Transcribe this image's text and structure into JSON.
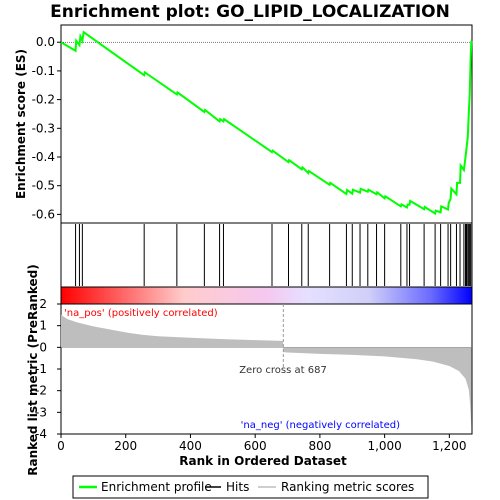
{
  "chart_data": {
    "type": "line",
    "title": "Enrichment plot: GO_LIPID_LOCALIZATION",
    "es_panel": {
      "ylabel": "Enrichment score (ES)",
      "ylim": [
        -0.63,
        0.06
      ],
      "yticks": [
        0.0,
        -0.1,
        -0.2,
        -0.3,
        -0.4,
        -0.5,
        -0.6
      ],
      "ytick_labels": [
        "0.0",
        "-0.1",
        "-0.2",
        "-0.3",
        "-0.4",
        "-0.5",
        "-0.6"
      ],
      "series": [
        {
          "name": "Enrichment profile",
          "color": "#00ff00",
          "points": [
            [
              0,
              0.0
            ],
            [
              45,
              -0.03
            ],
            [
              47,
              0.005
            ],
            [
              57,
              -0.01
            ],
            [
              60,
              0.02
            ],
            [
              66,
              0.005
            ],
            [
              70,
              0.035
            ],
            [
              257,
              -0.115
            ],
            [
              259,
              -0.105
            ],
            [
              358,
              -0.182
            ],
            [
              360,
              -0.175
            ],
            [
              443,
              -0.243
            ],
            [
              445,
              -0.236
            ],
            [
              490,
              -0.276
            ],
            [
              492,
              -0.268
            ],
            [
              502,
              -0.276
            ],
            [
              504,
              -0.268
            ],
            [
              652,
              -0.383
            ],
            [
              654,
              -0.378
            ],
            [
              703,
              -0.418
            ],
            [
              705,
              -0.411
            ],
            [
              744,
              -0.443
            ],
            [
              746,
              -0.436
            ],
            [
              764,
              -0.456
            ],
            [
              766,
              -0.449
            ],
            [
              830,
              -0.497
            ],
            [
              832,
              -0.49
            ],
            [
              882,
              -0.529
            ],
            [
              884,
              -0.515
            ],
            [
              900,
              -0.528
            ],
            [
              902,
              -0.514
            ],
            [
              924,
              -0.524
            ],
            [
              926,
              -0.511
            ],
            [
              948,
              -0.521
            ],
            [
              950,
              -0.514
            ],
            [
              975,
              -0.53
            ],
            [
              977,
              -0.523
            ],
            [
              1000,
              -0.544
            ],
            [
              1002,
              -0.537
            ],
            [
              1050,
              -0.572
            ],
            [
              1052,
              -0.565
            ],
            [
              1069,
              -0.576
            ],
            [
              1071,
              -0.566
            ],
            [
              1077,
              -0.566
            ],
            [
              1079,
              -0.553
            ],
            [
              1122,
              -0.582
            ],
            [
              1124,
              -0.574
            ],
            [
              1156,
              -0.597
            ],
            [
              1158,
              -0.587
            ],
            [
              1173,
              -0.593
            ],
            [
              1175,
              -0.572
            ],
            [
              1196,
              -0.583
            ],
            [
              1198,
              -0.56
            ],
            [
              1204,
              -0.545
            ],
            [
              1206,
              -0.51
            ],
            [
              1222,
              -0.53
            ],
            [
              1224,
              -0.49
            ],
            [
              1233,
              -0.49
            ],
            [
              1235,
              -0.43
            ],
            [
              1245,
              -0.445
            ],
            [
              1250,
              -0.4
            ],
            [
              1253,
              -0.37
            ],
            [
              1257,
              -0.33
            ],
            [
              1260,
              -0.25
            ],
            [
              1263,
              -0.18
            ],
            [
              1266,
              -0.05
            ],
            [
              1268,
              0.005
            ]
          ]
        }
      ]
    },
    "hits_panel": {
      "hit_positions": [
        45,
        57,
        66,
        257,
        358,
        443,
        490,
        502,
        652,
        703,
        744,
        764,
        830,
        882,
        900,
        924,
        948,
        975,
        1000,
        1050,
        1069,
        1077,
        1122,
        1156,
        1173,
        1196,
        1204,
        1222,
        1233,
        1245,
        1250,
        1253,
        1257,
        1260,
        1263,
        1266
      ]
    },
    "metric_panel": {
      "ylabel": "Ranked list metric (PreRanked)",
      "ylim": [
        -4,
        2
      ],
      "yticks": [
        2,
        1,
        0,
        -1,
        -2,
        -3,
        -4
      ],
      "ytick_labels": [
        "2",
        "1",
        "0",
        "-1",
        "-2",
        "-3",
        "-4"
      ],
      "fill_color": "#bebebe",
      "profile": [
        [
          0,
          1.5
        ],
        [
          20,
          1.3
        ],
        [
          50,
          1.15
        ],
        [
          100,
          0.97
        ],
        [
          150,
          0.83
        ],
        [
          200,
          0.69
        ],
        [
          250,
          0.58
        ],
        [
          300,
          0.51
        ],
        [
          400,
          0.44
        ],
        [
          500,
          0.38
        ],
        [
          600,
          0.33
        ],
        [
          686,
          0.3
        ],
        [
          687,
          -0.22
        ],
        [
          700,
          -0.24
        ],
        [
          800,
          -0.3
        ],
        [
          900,
          -0.35
        ],
        [
          1000,
          -0.42
        ],
        [
          1100,
          -0.55
        ],
        [
          1150,
          -0.66
        ],
        [
          1200,
          -0.86
        ],
        [
          1230,
          -1.1
        ],
        [
          1250,
          -1.45
        ],
        [
          1260,
          -1.95
        ],
        [
          1264,
          -2.6
        ],
        [
          1268,
          -3.7
        ]
      ],
      "zero_cross_label": "Zero cross at 687",
      "zero_cross": 687,
      "pos_label": "'na_pos' (positively correlated)",
      "neg_label": "'na_neg' (negatively correlated)",
      "pos_color": "#ff0000",
      "neg_color": "#0000ff"
    },
    "x_axis": {
      "label": "Rank in Ordered Dataset",
      "xlim": [
        0,
        1270
      ],
      "xticks": [
        0,
        200,
        400,
        600,
        800,
        1000,
        1200
      ],
      "xtick_labels": [
        "0",
        "200",
        "400",
        "600",
        "800",
        "1,000",
        "1,200"
      ]
    },
    "legend": {
      "placement": "bottom",
      "items": [
        {
          "label": "Enrichment profile",
          "color": "#00ff00"
        },
        {
          "label": "Hits",
          "color": "#000000"
        },
        {
          "label": "Ranking metric scores",
          "color": "#bebebe"
        }
      ]
    }
  }
}
